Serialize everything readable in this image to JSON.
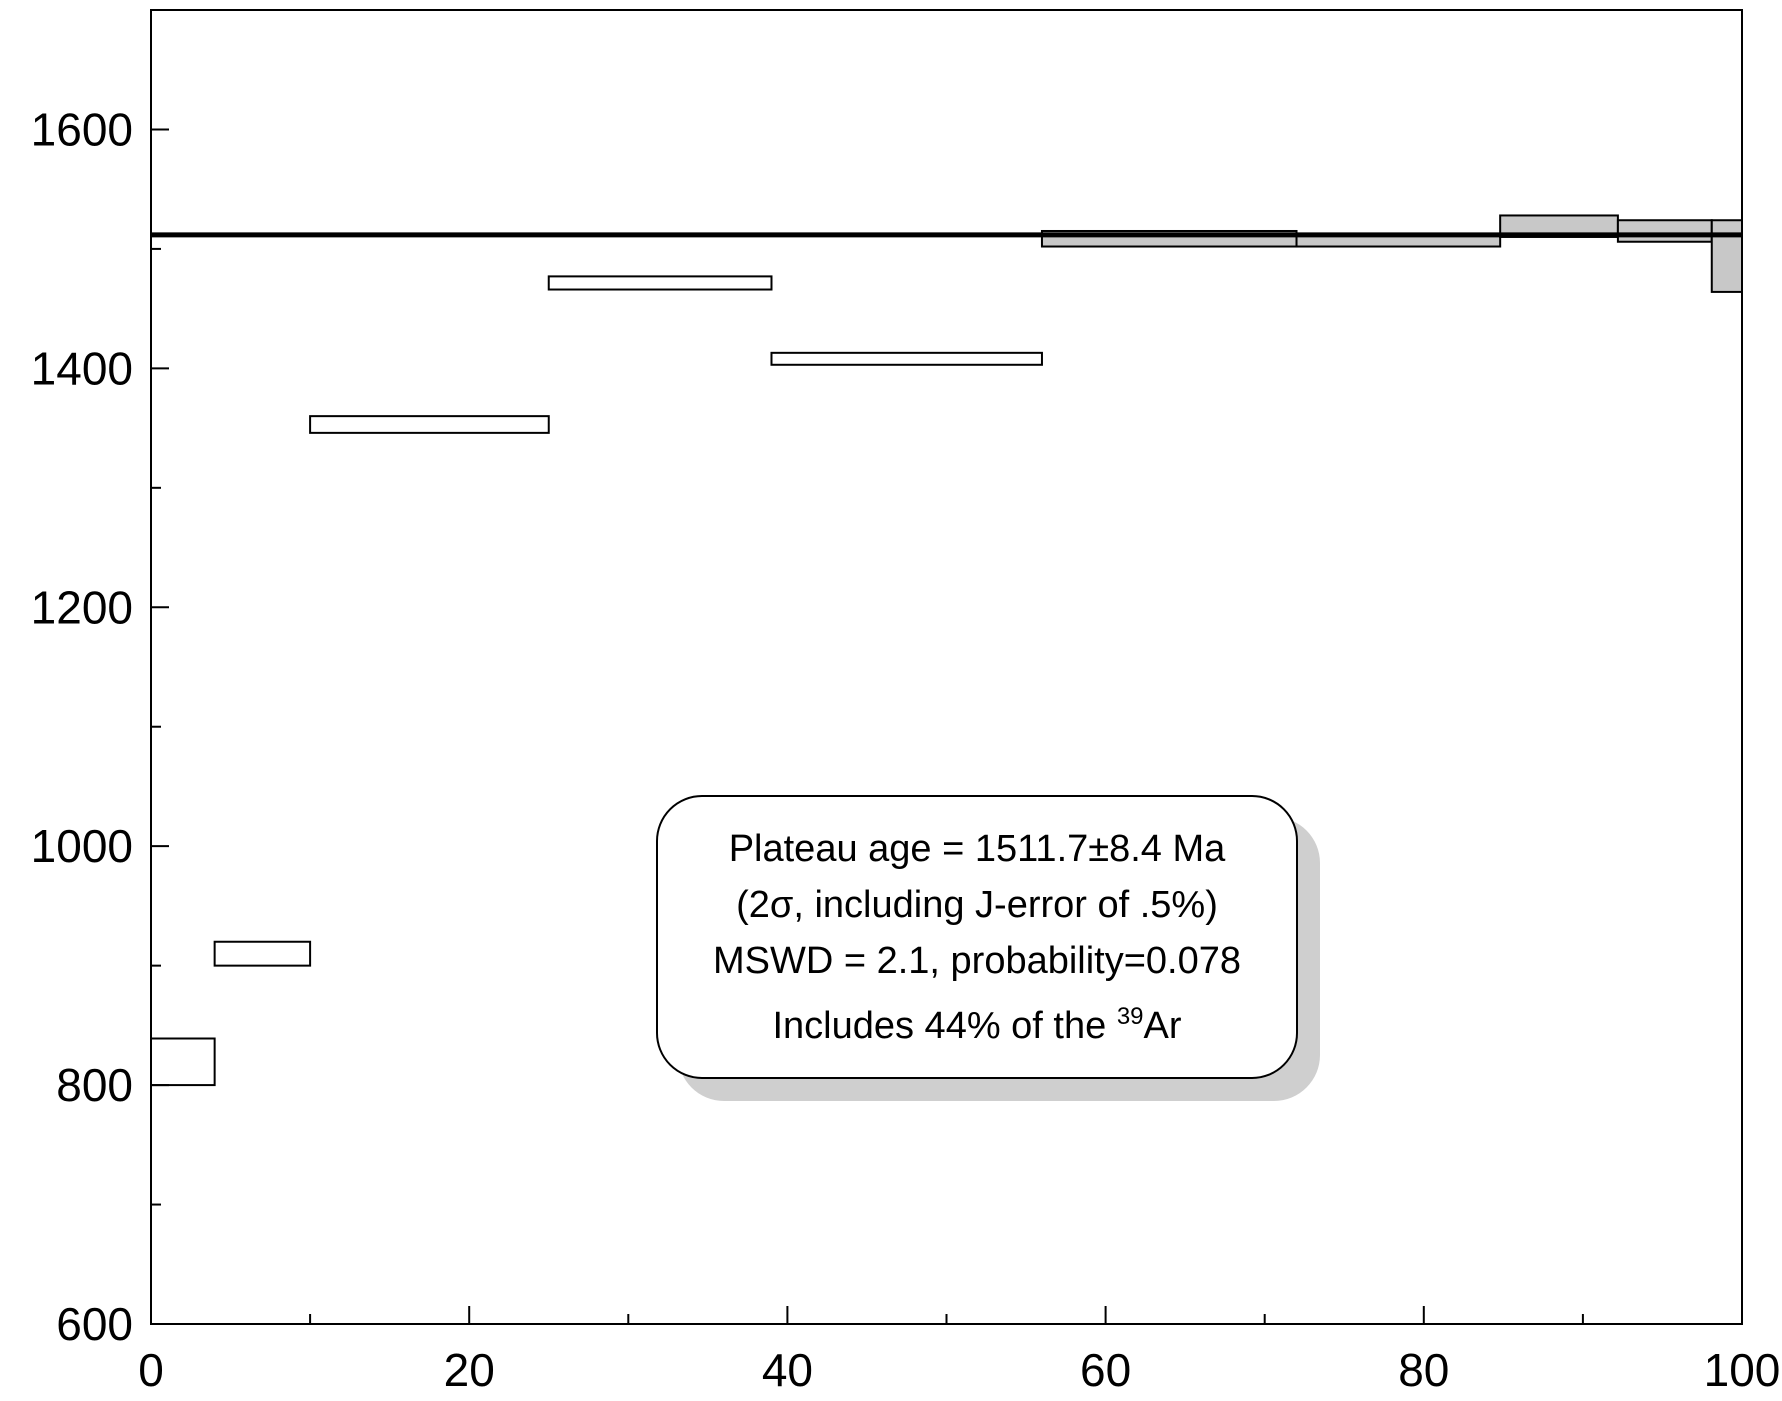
{
  "chart_data": {
    "type": "step-area",
    "xlim": [
      0,
      100
    ],
    "ylim": [
      600,
      1700
    ],
    "x_ticks": [
      "0",
      "20",
      "40",
      "60",
      "80",
      "100"
    ],
    "y_ticks": [
      "600",
      "800",
      "1000",
      "1200",
      "1400",
      "1600"
    ],
    "grid": false,
    "steps": [
      {
        "x0": 0,
        "x1": 4,
        "low": 800,
        "high": 839,
        "plateau": false
      },
      {
        "x0": 4,
        "x1": 10,
        "low": 900,
        "high": 920,
        "plateau": false
      },
      {
        "x0": 10,
        "x1": 25,
        "low": 1346,
        "high": 1360,
        "plateau": false
      },
      {
        "x0": 25,
        "x1": 39,
        "low": 1466,
        "high": 1477,
        "plateau": false
      },
      {
        "x0": 39,
        "x1": 56,
        "low": 1403,
        "high": 1413,
        "plateau": false
      },
      {
        "x0": 56,
        "x1": 72,
        "low": 1502,
        "high": 1515,
        "plateau": true
      },
      {
        "x0": 72,
        "x1": 84.8,
        "low": 1502,
        "high": 1512,
        "plateau": true
      },
      {
        "x0": 84.8,
        "x1": 92.2,
        "low": 1510,
        "high": 1528,
        "plateau": true
      },
      {
        "x0": 92.2,
        "x1": 98.1,
        "low": 1506,
        "high": 1524,
        "plateau": true
      },
      {
        "x0": 98.1,
        "x1": 100,
        "low": 1464,
        "high": 1524,
        "plateau": true
      }
    ],
    "plateau_age": 1511.7,
    "colors": {
      "plateau_fill": "#c8c8c8",
      "shadow": "#cfcfcf",
      "line": "#000000"
    }
  },
  "annotation": {
    "line1": "Plateau age = 1511.7±8.4 Ma",
    "line2": "(2σ, including J-error of .5%)",
    "line3": "MSWD = 2.1, probability=0.078",
    "line4_prefix": "Includes 44% of the ",
    "line4_sup": "39",
    "line4_suffix": "Ar"
  }
}
